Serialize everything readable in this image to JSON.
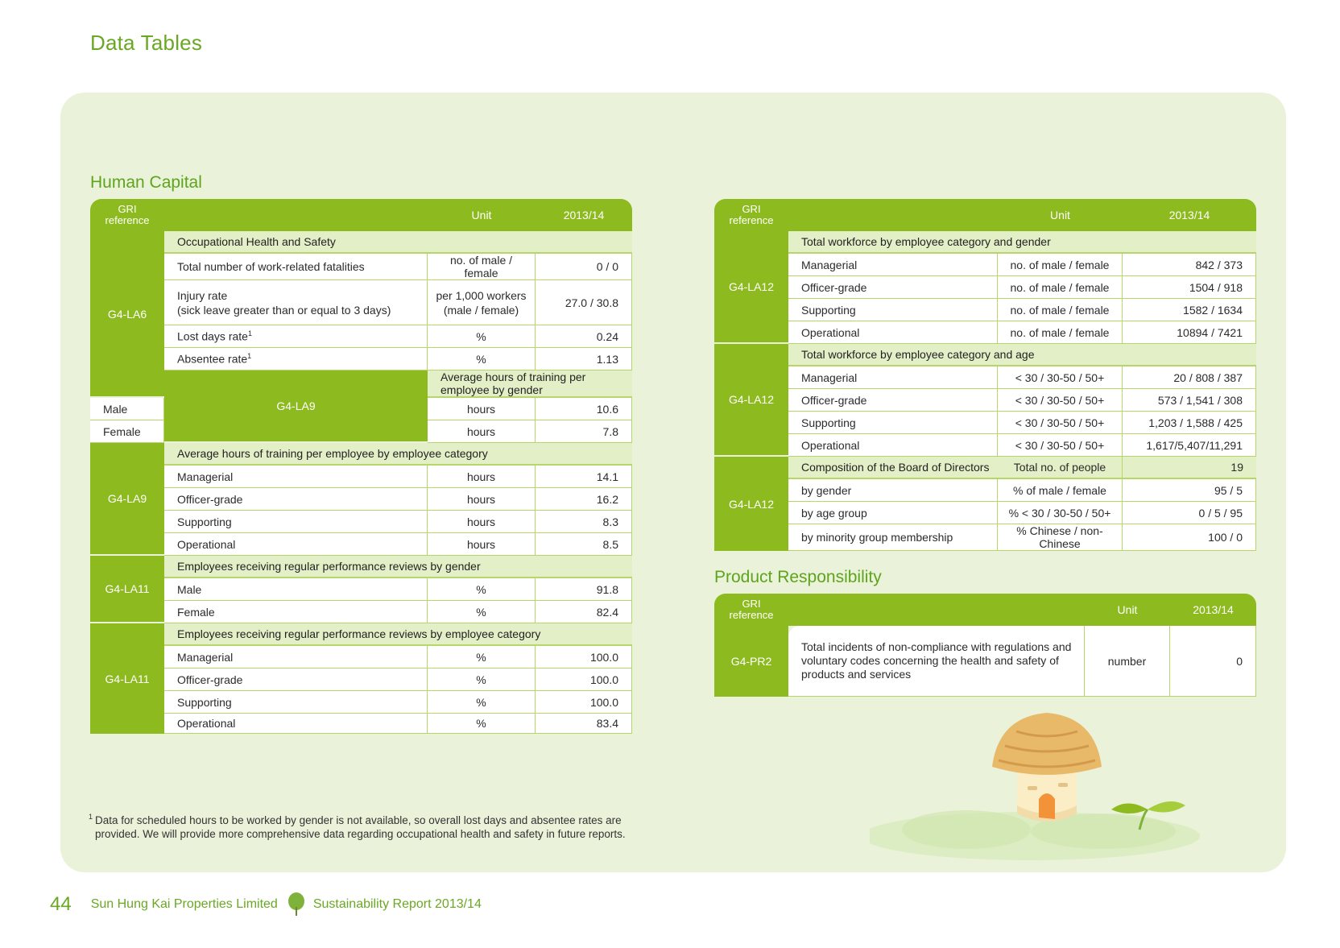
{
  "page": {
    "title": "Data Tables",
    "footnote_mark": "1",
    "footnote": "Data for scheduled hours to be worked by gender is not available, so overall lost days and absentee rates are provided. We will provide more comprehensive data regarding occupational health and safety in future reports.",
    "footer": {
      "page_number": "44",
      "company": "Sun Hung Kai Properties Limited",
      "report": "Sustainability Report 2013/14",
      "tree_icon": "tree-icon"
    }
  },
  "header": {
    "gri_line1": "GRI",
    "gri_line2": "reference",
    "unit": "Unit",
    "year": "2013/14"
  },
  "human_capital": {
    "title": "Human Capital",
    "groups": [
      {
        "ref": "G4-LA6",
        "subheader": "Occupational Health and Safety",
        "rows": [
          {
            "label": "Total number of work-related fatalities",
            "unit": "no. of male / female",
            "value": "0 / 0"
          },
          {
            "label": "Injury rate",
            "label2": "(sick leave greater than or equal to 3 days)",
            "unit": "per 1,000 workers",
            "unit2": "(male / female)",
            "value": "27.0 / 30.8"
          },
          {
            "label": "Lost days rate",
            "sup": "1",
            "unit": "%",
            "value": "0.24"
          },
          {
            "label": "Absentee rate",
            "sup": "1",
            "unit": "%",
            "value": "1.13"
          }
        ]
      },
      {
        "ref": "G4-LA9",
        "subheader": "Average hours of training per employee by gender",
        "rows": [
          {
            "label": "Male",
            "unit": "hours",
            "value": "10.6"
          },
          {
            "label": "Female",
            "unit": "hours",
            "value": "7.8"
          }
        ]
      },
      {
        "ref": "G4-LA9",
        "subheader": "Average hours of training per employee by employee category",
        "rows": [
          {
            "label": "Managerial",
            "unit": "hours",
            "value": "14.1"
          },
          {
            "label": "Officer-grade",
            "unit": "hours",
            "value": "16.2"
          },
          {
            "label": "Supporting",
            "unit": "hours",
            "value": "8.3"
          },
          {
            "label": "Operational",
            "unit": "hours",
            "value": "8.5"
          }
        ]
      },
      {
        "ref": "G4-LA11",
        "subheader": "Employees receiving regular performance reviews by gender",
        "rows": [
          {
            "label": "Male",
            "unit": "%",
            "value": "91.8"
          },
          {
            "label": "Female",
            "unit": "%",
            "value": "82.4"
          }
        ]
      },
      {
        "ref": "G4-LA11",
        "subheader": "Employees receiving regular performance reviews by employee category",
        "rows": [
          {
            "label": "Managerial",
            "unit": "%",
            "value": "100.0"
          },
          {
            "label": "Officer-grade",
            "unit": "%",
            "value": "100.0"
          },
          {
            "label": "Supporting",
            "unit": "%",
            "value": "100.0"
          },
          {
            "label": "Operational",
            "unit": "%",
            "value": "83.4"
          }
        ]
      }
    ]
  },
  "workforce": {
    "groups": [
      {
        "ref": "G4-LA12",
        "subheader": "Total workforce by employee category and gender",
        "rows": [
          {
            "label": "Managerial",
            "unit": "no. of male / female",
            "value": "842 / 373"
          },
          {
            "label": "Officer-grade",
            "unit": "no. of male / female",
            "value": "1504 / 918"
          },
          {
            "label": "Supporting",
            "unit": "no. of male / female",
            "value": "1582 / 1634"
          },
          {
            "label": "Operational",
            "unit": "no. of male / female",
            "value": "10894 / 7421"
          }
        ]
      },
      {
        "ref": "G4-LA12",
        "subheader": "Total workforce by employee category and age",
        "rows": [
          {
            "label": "Managerial",
            "unit": "< 30 / 30-50 / 50+",
            "value": "20 / 808 / 387"
          },
          {
            "label": "Officer-grade",
            "unit": "< 30 / 30-50 / 50+",
            "value": "573 / 1,541 / 308"
          },
          {
            "label": "Supporting",
            "unit": "< 30 / 30-50 / 50+",
            "value": "1,203 / 1,588 / 425"
          },
          {
            "label": "Operational",
            "unit": "< 30 / 30-50 / 50+",
            "value": "1,617/5,407/11,291"
          }
        ]
      },
      {
        "ref": "G4-LA12",
        "subheader": "Composition of the Board of Directors",
        "subheader_unit": "Total no. of people",
        "subheader_value": "19",
        "rows": [
          {
            "label": "by gender",
            "unit": "% of male / female",
            "value": "95 / 5"
          },
          {
            "label": "by age group",
            "unit": "% < 30 / 30-50 / 50+",
            "value": "0 / 5 / 95"
          },
          {
            "label": "by minority group membership",
            "unit": "% Chinese / non-Chinese",
            "value": "100 / 0"
          }
        ]
      }
    ]
  },
  "product_responsibility": {
    "title": "Product Responsibility",
    "ref": "G4-PR2",
    "lines": [
      "Total incidents of non-compliance with regulations and",
      "voluntary codes concerning the health and safety of",
      "products and services"
    ],
    "unit": "number",
    "value": "0"
  },
  "colors": {
    "accent": "#8dbb1f",
    "title_green": "#6aa823",
    "subheader": "#e3efc6",
    "panel": "#eaf2da"
  }
}
